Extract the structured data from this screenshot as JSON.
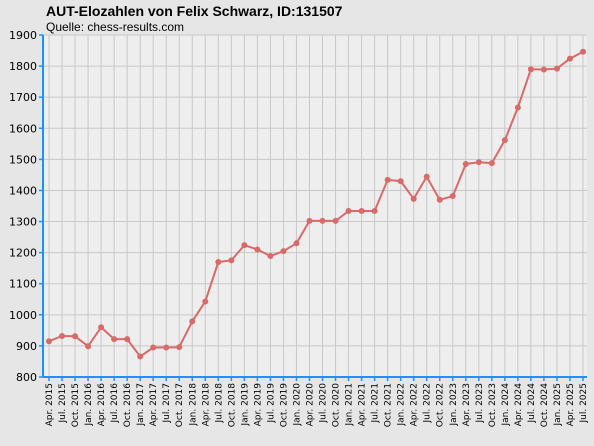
{
  "chart_data": {
    "type": "line",
    "title": "AUT-Elozahlen von Felix Schwarz, ID:131507",
    "subtitle": "Quelle: chess-results.com",
    "ylim": [
      800,
      1900
    ],
    "yticks": [
      800,
      900,
      1000,
      1100,
      1200,
      1300,
      1400,
      1500,
      1600,
      1700,
      1800,
      1900
    ],
    "grid": true,
    "colors": {
      "background": "#e6e6e6",
      "plot_background": "#eeeeee",
      "grid": "#c8c8c8",
      "axis": "#1e90ff",
      "line": "#d86a6a"
    },
    "categories": [
      "Apr. 2015",
      "Jul. 2015",
      "Oct. 2015",
      "Jan. 2016",
      "Apr. 2016",
      "Jul. 2016",
      "Oct. 2016",
      "Jan. 2017",
      "Apr. 2017",
      "Jul. 2017",
      "Oct. 2017",
      "Jan. 2018",
      "Apr. 2018",
      "Jul. 2018",
      "Oct. 2018",
      "Jan. 2019",
      "Apr. 2019",
      "Jul. 2019",
      "Oct. 2019",
      "Jan. 2020",
      "Apr. 2020",
      "Jul. 2020",
      "Oct. 2020",
      "Jan. 2021",
      "Apr. 2021",
      "Jul. 2021",
      "Oct. 2021",
      "Jan. 2022",
      "Apr. 2022",
      "Jul. 2022",
      "Oct. 2022",
      "Jan. 2023",
      "Apr. 2023",
      "Jul. 2023",
      "Oct. 2023",
      "Jan. 2024",
      "Apr. 2024",
      "Jul. 2024",
      "Oct. 2024",
      "Jan. 2025",
      "Apr. 2025",
      "Jul. 2025"
    ],
    "values": [
      915,
      932,
      931,
      899,
      960,
      922,
      922,
      866,
      895,
      895,
      896,
      979,
      1043,
      1170,
      1175,
      1224,
      1210,
      1189,
      1205,
      1230,
      1302,
      1302,
      1302,
      1334,
      1334,
      1334,
      1434,
      1430,
      1373,
      1444,
      1370,
      1382,
      1485,
      1491,
      1488,
      1562,
      1667,
      1790,
      1789,
      1792,
      1824,
      1846
    ]
  }
}
